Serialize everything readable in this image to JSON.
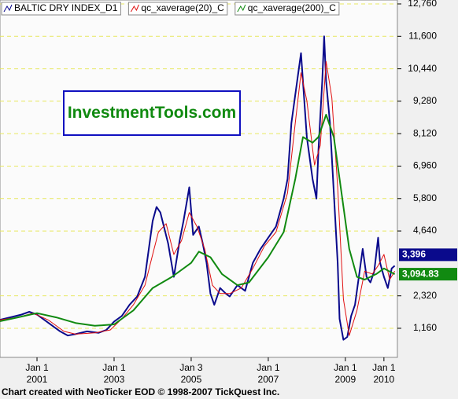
{
  "chart_data": {
    "type": "line",
    "watermark": "InvestmentTools.com",
    "footer": "Chart created with NeoTicker EOD © 1998-2007 TickQuest Inc.",
    "xlim": [
      2000.04,
      2010.35
    ],
    "xticks": [
      {
        "value": 2001.0,
        "label": "Jan 1\n2001"
      },
      {
        "value": 2003.0,
        "label": "Jan 1\n2003"
      },
      {
        "value": 2005.0,
        "label": "Jan 3\n2005"
      },
      {
        "value": 2007.0,
        "label": "Jan 1\n2007"
      },
      {
        "value": 2009.0,
        "label": "Jan 1\n2009"
      },
      {
        "value": 2010.0,
        "label": "Jan 1\n2010"
      }
    ],
    "ylim": [
      120,
      12900
    ],
    "yticks": [
      {
        "value": 1160,
        "label": "1,160"
      },
      {
        "value": 2320,
        "label": "2,320"
      },
      {
        "value": 4640,
        "label": "4,640"
      },
      {
        "value": 5800,
        "label": "5,800"
      },
      {
        "value": 6960,
        "label": "6,960"
      },
      {
        "value": 8120,
        "label": "8,120"
      },
      {
        "value": 9280,
        "label": "9,280"
      },
      {
        "value": 10440,
        "label": "10,440"
      },
      {
        "value": 11600,
        "label": "11,600"
      },
      {
        "value": 12760,
        "label": "12,760"
      }
    ],
    "grid": true,
    "series": [
      {
        "name": "BALTIC DRY INDEX_D1",
        "color": "#0a0a8c",
        "width": 2,
        "x": [
          2000.0,
          2000.3,
          2000.6,
          2000.8,
          2001.0,
          2001.3,
          2001.6,
          2001.8,
          2002.0,
          2002.3,
          2002.6,
          2002.8,
          2003.0,
          2003.2,
          2003.4,
          2003.6,
          2003.8,
          2003.9,
          2004.0,
          2004.1,
          2004.2,
          2004.4,
          2004.55,
          2004.7,
          2004.8,
          2004.9,
          2004.95,
          2005.05,
          2005.2,
          2005.3,
          2005.4,
          2005.5,
          2005.6,
          2005.75,
          2005.9,
          2006.0,
          2006.2,
          2006.4,
          2006.6,
          2006.8,
          2007.0,
          2007.2,
          2007.4,
          2007.5,
          2007.6,
          2007.75,
          2007.85,
          2007.95,
          2008.0,
          2008.15,
          2008.25,
          2008.3,
          2008.4,
          2008.45,
          2008.5,
          2008.6,
          2008.7,
          2008.8,
          2008.85,
          2008.95,
          2009.05,
          2009.15,
          2009.25,
          2009.35,
          2009.45,
          2009.55,
          2009.65,
          2009.75,
          2009.85,
          2009.9,
          2010.0,
          2010.1,
          2010.2,
          2010.28
        ],
        "values": [
          1450,
          1550,
          1650,
          1750,
          1650,
          1350,
          1050,
          900,
          950,
          1050,
          1000,
          1100,
          1400,
          1600,
          2000,
          2300,
          3000,
          4000,
          5000,
          5500,
          5300,
          4200,
          3000,
          4300,
          5000,
          5800,
          6200,
          4500,
          4800,
          4200,
          3500,
          2400,
          2000,
          2600,
          2400,
          2300,
          2700,
          2500,
          3500,
          4000,
          4400,
          4800,
          5800,
          6500,
          8500,
          10000,
          11000,
          9000,
          8000,
          6500,
          5800,
          7500,
          10000,
          11600,
          10000,
          8500,
          6000,
          3500,
          1500,
          750,
          850,
          1600,
          2000,
          3000,
          4000,
          3000,
          2800,
          3200,
          4400,
          3500,
          3000,
          2600,
          3300,
          3396
        ],
        "last_label": "3,396"
      },
      {
        "name": "qc_xaverage(20)_C",
        "color": "#e01010",
        "width": 1,
        "x": [
          2000.0,
          2000.5,
          2000.9,
          2001.3,
          2001.7,
          2002.0,
          2002.5,
          2002.9,
          2003.2,
          2003.5,
          2003.8,
          2004.0,
          2004.15,
          2004.35,
          2004.55,
          2004.75,
          2004.95,
          2005.15,
          2005.35,
          2005.55,
          2005.75,
          2006.0,
          2006.3,
          2006.6,
          2006.9,
          2007.2,
          2007.5,
          2007.7,
          2007.85,
          2008.0,
          2008.2,
          2008.35,
          2008.5,
          2008.65,
          2008.8,
          2008.95,
          2009.1,
          2009.3,
          2009.5,
          2009.7,
          2009.85,
          2010.0,
          2010.15,
          2010.28
        ],
        "values": [
          1450,
          1550,
          1700,
          1450,
          1050,
          950,
          1000,
          1100,
          1500,
          2000,
          2700,
          3800,
          4600,
          4900,
          3800,
          4300,
          5300,
          4800,
          4000,
          2700,
          2400,
          2400,
          2600,
          3300,
          4100,
          4600,
          6000,
          8500,
          10300,
          9300,
          7000,
          7700,
          10700,
          9400,
          6200,
          2200,
          900,
          1800,
          3200,
          3100,
          3400,
          3800,
          2900,
          3200
        ]
      },
      {
        "name": "qc_xaverage(200)_C",
        "color": "#118a11",
        "width": 2,
        "x": [
          2000.0,
          2000.5,
          2001.0,
          2001.5,
          2002.0,
          2002.5,
          2003.0,
          2003.5,
          2004.0,
          2004.5,
          2005.0,
          2005.2,
          2005.5,
          2005.8,
          2006.2,
          2006.5,
          2007.0,
          2007.4,
          2007.7,
          2007.9,
          2008.15,
          2008.3,
          2008.5,
          2008.7,
          2008.9,
          2009.1,
          2009.3,
          2009.5,
          2009.8,
          2010.0,
          2010.28
        ],
        "values": [
          1400,
          1550,
          1700,
          1550,
          1350,
          1250,
          1300,
          1800,
          2600,
          3000,
          3500,
          3900,
          3700,
          3100,
          2700,
          2800,
          3700,
          4600,
          6500,
          8000,
          7800,
          8000,
          8800,
          8000,
          6000,
          4000,
          3000,
          2900,
          3100,
          3300,
          3094.83
        ],
        "last_label": "3,094.83"
      }
    ]
  }
}
